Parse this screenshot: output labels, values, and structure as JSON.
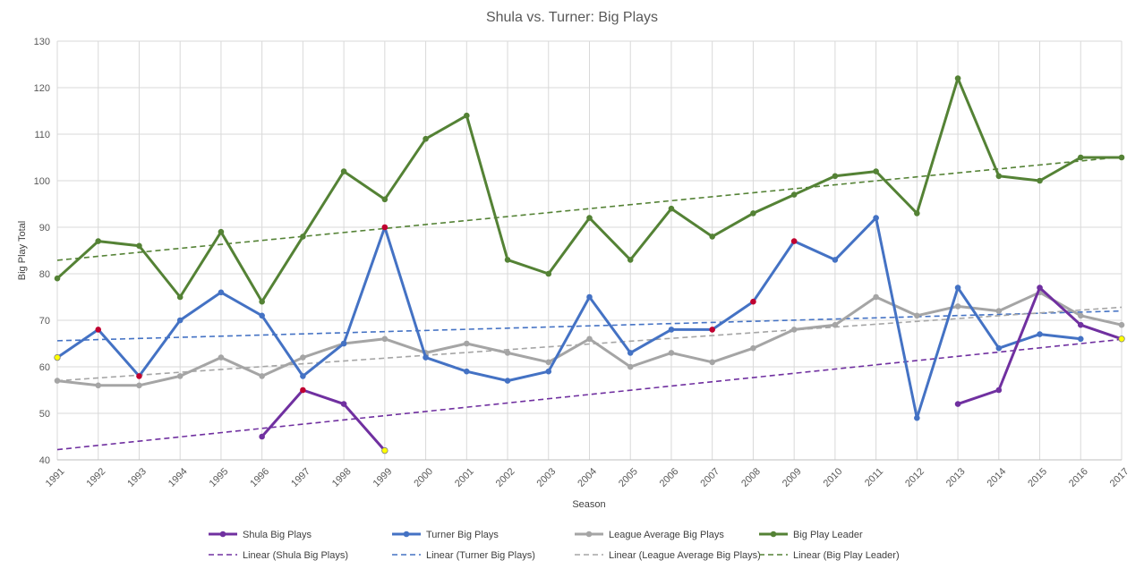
{
  "chart_data": {
    "type": "line",
    "title": "Shula vs. Turner: Big Plays",
    "xlabel": "Season",
    "ylabel": "Big Play Total",
    "ylim": [
      40,
      130
    ],
    "yticks": [
      40,
      50,
      60,
      70,
      80,
      90,
      100,
      110,
      120,
      130
    ],
    "grid": true,
    "legend_position": "bottom",
    "categories": [
      "1991",
      "1992",
      "1993",
      "1994",
      "1995",
      "1996",
      "1997",
      "1998",
      "1999",
      "2000",
      "2001",
      "2002",
      "2003",
      "2004",
      "2005",
      "2006",
      "2007",
      "2008",
      "2009",
      "2010",
      "2011",
      "2012",
      "2013",
      "2014",
      "2015",
      "2016",
      "2017"
    ],
    "series": [
      {
        "name": "Shula Big Plays",
        "color": "#7030A0",
        "values": [
          null,
          null,
          null,
          null,
          null,
          45,
          55,
          52,
          42,
          null,
          null,
          null,
          null,
          null,
          null,
          null,
          null,
          null,
          null,
          null,
          null,
          null,
          52,
          55,
          77,
          69,
          66
        ],
        "highlights": {
          "6": "#C00030",
          "12": "#C00030",
          "13": "#C00030",
          "14": "#C00030",
          "8": "#FFFF00"
        }
      },
      {
        "name": "Turner Big Plays",
        "color": "#4472C4",
        "values": [
          62,
          68,
          58,
          70,
          76,
          71,
          58,
          65,
          90,
          62,
          59,
          57,
          59,
          75,
          63,
          68,
          68,
          74,
          87,
          83,
          92,
          49,
          77,
          64,
          67,
          66,
          null
        ],
        "highlights": {
          "0": "#FFFF00",
          "1": "#C00030",
          "2": "#C00030",
          "8": "#C00030",
          "16": "#C00030",
          "17": "#C00030",
          "18": "#C00030"
        }
      },
      {
        "name": "League Average Big Plays",
        "color": "#A5A5A5",
        "values": [
          57,
          56,
          56,
          58,
          62,
          58,
          62,
          65,
          66,
          63,
          65,
          63,
          61,
          66,
          60,
          63,
          61,
          64,
          68,
          69,
          75,
          71,
          73,
          72,
          76,
          71,
          69
        ],
        "highlights": {}
      },
      {
        "name": "Big Play Leader",
        "color": "#548235",
        "values": [
          79,
          87,
          86,
          75,
          89,
          74,
          88,
          102,
          96,
          109,
          114,
          83,
          80,
          92,
          83,
          94,
          88,
          93,
          97,
          101,
          102,
          93,
          122,
          101,
          100,
          105,
          105
        ],
        "highlights": {}
      }
    ],
    "trendlines": [
      {
        "name": "Linear (Shula Big Plays)",
        "color": "#7030A0",
        "start": 42.2,
        "end": 65.9
      },
      {
        "name": "Linear (Turner Big Plays)",
        "color": "#4472C4",
        "start": 65.6,
        "end": 72.0
      },
      {
        "name": "Linear (League Average Big Plays)",
        "color": "#A5A5A5",
        "start": 57.0,
        "end": 72.8
      },
      {
        "name": "Linear (Big Play Leader)",
        "color": "#548235",
        "start": 82.9,
        "end": 105.1
      }
    ],
    "endpoint_markers": [
      {
        "x_index": 26,
        "y": 66,
        "color": "#FFFF00"
      }
    ]
  }
}
